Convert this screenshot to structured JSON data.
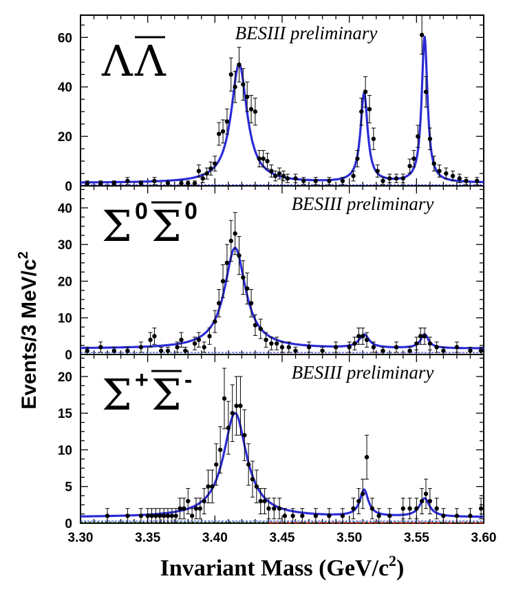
{
  "chart_data": [
    {
      "type": "scatter",
      "title": "ΛΛ̄",
      "annotation": "BESIII preliminary",
      "label": {
        "main": "Λ",
        "bar": "Λ"
      },
      "ylim": [
        0,
        69
      ],
      "yticks": [
        0,
        20,
        40,
        60
      ],
      "fit": {
        "background": 1.2,
        "peaks": [
          [
            3.418,
            48,
            0.0072
          ],
          [
            3.511,
            36,
            0.0032
          ],
          [
            3.556,
            59,
            0.0026
          ]
        ]
      },
      "points": [
        [
          3.305,
          1
        ],
        [
          3.315,
          1
        ],
        [
          3.325,
          1
        ],
        [
          3.335,
          2
        ],
        [
          3.345,
          1
        ],
        [
          3.355,
          2
        ],
        [
          3.365,
          1
        ],
        [
          3.375,
          1
        ],
        [
          3.38,
          1
        ],
        [
          3.385,
          1
        ],
        [
          3.388,
          6
        ],
        [
          3.391,
          3
        ],
        [
          3.394,
          5
        ],
        [
          3.397,
          7
        ],
        [
          3.4,
          9
        ],
        [
          3.403,
          21
        ],
        [
          3.406,
          22
        ],
        [
          3.409,
          26
        ],
        [
          3.412,
          45
        ],
        [
          3.415,
          40
        ],
        [
          3.418,
          49
        ],
        [
          3.421,
          41
        ],
        [
          3.424,
          36
        ],
        [
          3.427,
          31
        ],
        [
          3.43,
          30
        ],
        [
          3.433,
          11
        ],
        [
          3.436,
          11
        ],
        [
          3.439,
          10
        ],
        [
          3.442,
          6
        ],
        [
          3.445,
          4
        ],
        [
          3.448,
          5
        ],
        [
          3.451,
          4
        ],
        [
          3.454,
          3
        ],
        [
          3.46,
          3
        ],
        [
          3.466,
          2
        ],
        [
          3.475,
          2
        ],
        [
          3.485,
          2
        ],
        [
          3.495,
          2
        ],
        [
          3.503,
          4
        ],
        [
          3.506,
          11
        ],
        [
          3.509,
          30
        ],
        [
          3.512,
          38
        ],
        [
          3.515,
          31
        ],
        [
          3.518,
          19
        ],
        [
          3.521,
          6
        ],
        [
          3.525,
          2
        ],
        [
          3.53,
          3
        ],
        [
          3.535,
          3
        ],
        [
          3.54,
          3
        ],
        [
          3.545,
          8
        ],
        [
          3.548,
          11
        ],
        [
          3.551,
          20
        ],
        [
          3.554,
          61
        ],
        [
          3.557,
          38
        ],
        [
          3.56,
          19
        ],
        [
          3.563,
          9
        ],
        [
          3.567,
          6
        ],
        [
          3.572,
          5
        ],
        [
          3.577,
          4
        ],
        [
          3.582,
          3
        ],
        [
          3.587,
          2
        ],
        [
          3.595,
          2
        ]
      ]
    },
    {
      "type": "scatter",
      "title": "Σ0Σ̄0",
      "annotation": "BESIII preliminary",
      "label": {
        "main": "Σ",
        "bar": "Σ",
        "sup": "0",
        "barsup": "0"
      },
      "ylim": [
        0,
        46
      ],
      "yticks": [
        0,
        10,
        20,
        30,
        40
      ],
      "fit": {
        "background": 1.6,
        "peaks": [
          [
            3.415,
            27.5,
            0.0095
          ],
          [
            3.511,
            3.6,
            0.0045
          ],
          [
            3.556,
            3.8,
            0.0035
          ]
        ]
      },
      "points": [
        [
          3.305,
          1
        ],
        [
          3.315,
          2
        ],
        [
          3.325,
          1
        ],
        [
          3.335,
          1
        ],
        [
          3.345,
          2
        ],
        [
          3.352,
          4
        ],
        [
          3.355,
          5
        ],
        [
          3.36,
          1
        ],
        [
          3.365,
          1
        ],
        [
          3.372,
          2
        ],
        [
          3.375,
          4
        ],
        [
          3.378,
          1
        ],
        [
          3.385,
          3
        ],
        [
          3.388,
          4
        ],
        [
          3.392,
          2
        ],
        [
          3.396,
          5
        ],
        [
          3.4,
          9
        ],
        [
          3.403,
          14
        ],
        [
          3.406,
          20
        ],
        [
          3.409,
          25
        ],
        [
          3.412,
          31
        ],
        [
          3.415,
          33
        ],
        [
          3.418,
          27
        ],
        [
          3.421,
          21
        ],
        [
          3.424,
          18
        ],
        [
          3.427,
          14
        ],
        [
          3.43,
          8
        ],
        [
          3.434,
          7
        ],
        [
          3.438,
          4
        ],
        [
          3.442,
          3
        ],
        [
          3.446,
          3
        ],
        [
          3.45,
          2
        ],
        [
          3.455,
          2
        ],
        [
          3.46,
          1
        ],
        [
          3.47,
          2
        ],
        [
          3.48,
          1
        ],
        [
          3.49,
          2
        ],
        [
          3.5,
          2
        ],
        [
          3.504,
          3
        ],
        [
          3.507,
          5
        ],
        [
          3.51,
          5
        ],
        [
          3.513,
          4
        ],
        [
          3.518,
          2
        ],
        [
          3.525,
          1
        ],
        [
          3.535,
          2
        ],
        [
          3.545,
          1
        ],
        [
          3.55,
          3
        ],
        [
          3.553,
          5
        ],
        [
          3.556,
          5
        ],
        [
          3.56,
          3
        ],
        [
          3.565,
          2
        ],
        [
          3.57,
          1
        ],
        [
          3.58,
          2
        ],
        [
          3.59,
          1
        ],
        [
          3.598,
          1
        ]
      ]
    },
    {
      "type": "scatter",
      "title": "Σ+Σ̄-",
      "annotation": "BESIII preliminary",
      "label": {
        "main": "Σ",
        "bar": "Σ",
        "sup": "+",
        "barsup": "-"
      },
      "ylim": [
        0,
        23
      ],
      "yticks": [
        0,
        5,
        10,
        15,
        20
      ],
      "fit": {
        "background": 0.8,
        "peaks": [
          [
            3.415,
            14.2,
            0.0105
          ],
          [
            3.511,
            3.6,
            0.0038
          ],
          [
            3.556,
            2.5,
            0.0045
          ]
        ]
      },
      "points": [
        [
          3.32,
          1
        ],
        [
          3.335,
          1
        ],
        [
          3.345,
          1
        ],
        [
          3.35,
          1
        ],
        [
          3.353,
          1
        ],
        [
          3.356,
          1
        ],
        [
          3.359,
          1
        ],
        [
          3.362,
          1
        ],
        [
          3.365,
          1
        ],
        [
          3.368,
          1
        ],
        [
          3.371,
          1
        ],
        [
          3.374,
          2
        ],
        [
          3.377,
          2
        ],
        [
          3.38,
          3
        ],
        [
          3.383,
          1
        ],
        [
          3.386,
          2
        ],
        [
          3.389,
          2
        ],
        [
          3.392,
          3
        ],
        [
          3.395,
          5
        ],
        [
          3.398,
          5
        ],
        [
          3.401,
          8
        ],
        [
          3.404,
          10
        ],
        [
          3.407,
          17
        ],
        [
          3.41,
          13
        ],
        [
          3.413,
          15
        ],
        [
          3.416,
          16
        ],
        [
          3.419,
          16
        ],
        [
          3.422,
          12
        ],
        [
          3.425,
          8
        ],
        [
          3.428,
          6
        ],
        [
          3.431,
          5
        ],
        [
          3.434,
          3
        ],
        [
          3.437,
          3
        ],
        [
          3.44,
          2
        ],
        [
          3.444,
          2
        ],
        [
          3.448,
          2
        ],
        [
          3.452,
          1
        ],
        [
          3.458,
          1
        ],
        [
          3.465,
          1
        ],
        [
          3.475,
          1
        ],
        [
          3.485,
          1
        ],
        [
          3.495,
          1
        ],
        [
          3.503,
          2
        ],
        [
          3.507,
          3
        ],
        [
          3.51,
          4
        ],
        [
          3.513,
          9
        ],
        [
          3.517,
          2
        ],
        [
          3.522,
          1
        ],
        [
          3.53,
          1
        ],
        [
          3.54,
          2
        ],
        [
          3.545,
          2
        ],
        [
          3.55,
          2
        ],
        [
          3.554,
          3
        ],
        [
          3.557,
          4
        ],
        [
          3.56,
          3
        ],
        [
          3.565,
          2
        ],
        [
          3.57,
          1
        ],
        [
          3.58,
          1
        ],
        [
          3.59,
          1
        ],
        [
          3.598,
          2
        ]
      ]
    }
  ],
  "xaxis": {
    "xlim": [
      3.3,
      3.6
    ],
    "ticks": [
      "3.30",
      "3.35",
      "3.40",
      "3.45",
      "3.50",
      "3.55",
      "3.60"
    ]
  },
  "ylabel": "Events/3 MeV/c",
  "ylabel_sup": "2",
  "xlabel": "Invariant Mass (GeV/c",
  "xlabel_sup": "2",
  "xlabel_end": ")",
  "colors": {
    "fit": "#2b2bd6",
    "bkg": "#3a3aff",
    "red": "#e02020",
    "green": "#20a020",
    "axis": "#000000"
  }
}
